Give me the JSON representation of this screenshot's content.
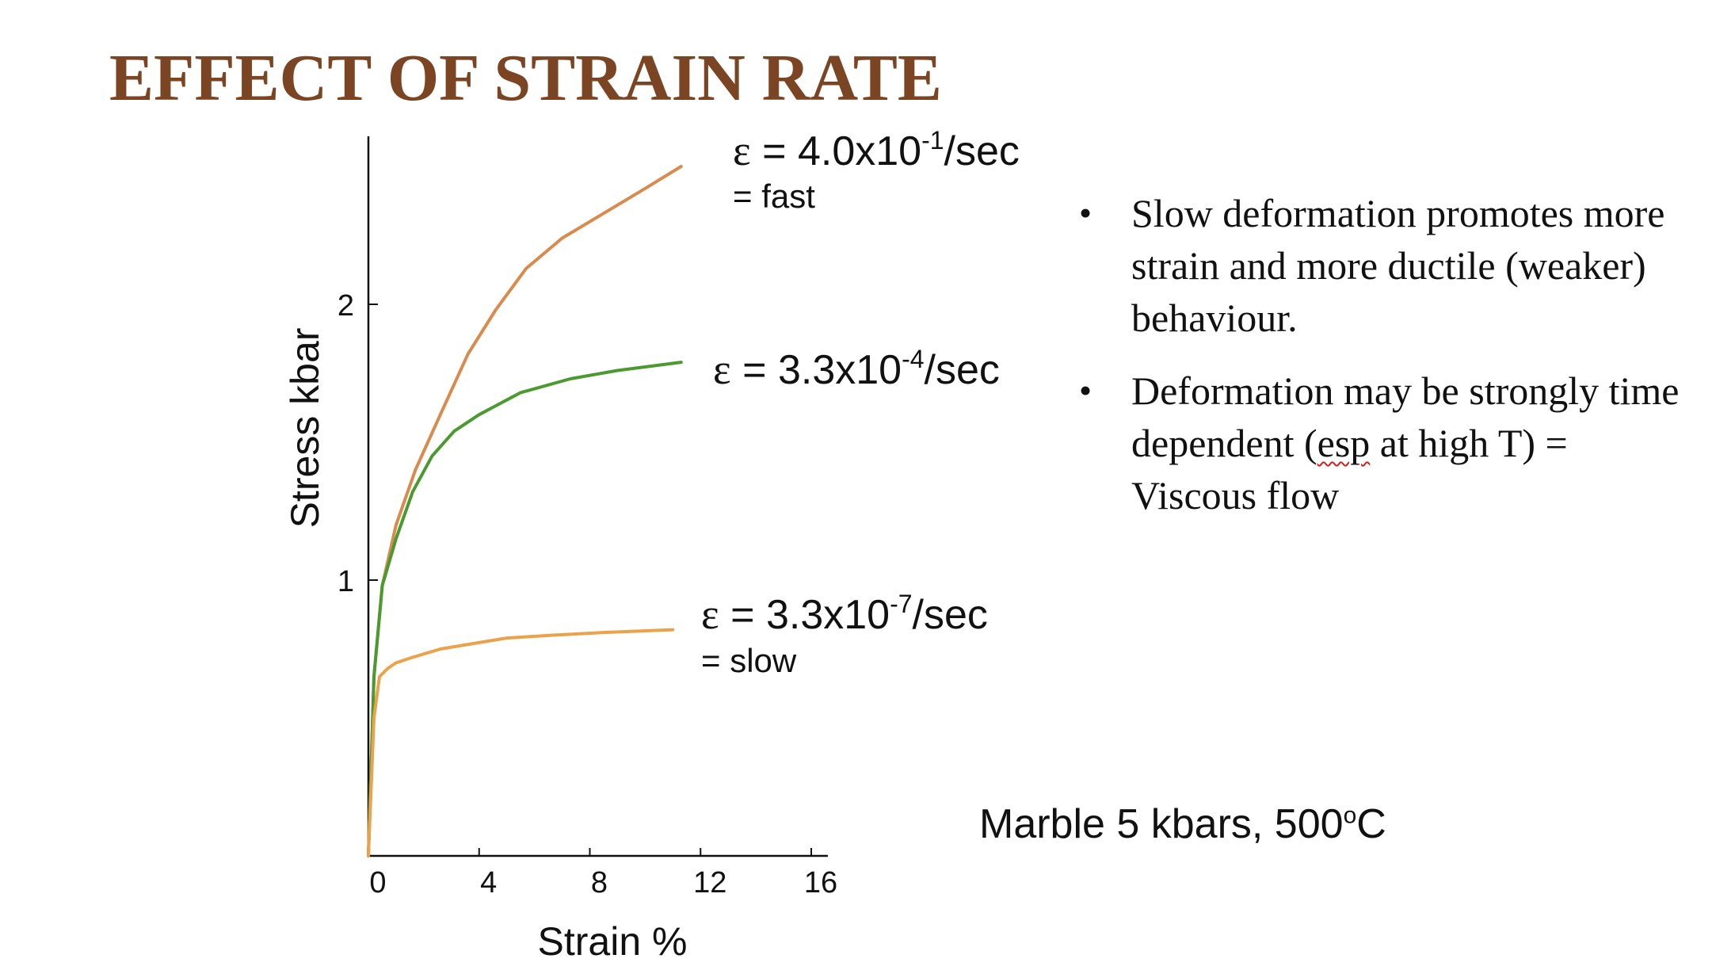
{
  "slide": {
    "title": "EFFECT OF STRAIN RATE",
    "bullets": [
      {
        "text": "Slow deformation promotes more strain and more ductile (weaker) behaviour."
      },
      {
        "pre": "Deformation may be strongly time dependent (",
        "misspelled": "esp",
        "post": " at high T) = Viscous flow"
      }
    ],
    "conditions": {
      "pre": "Marble 5 kbars, 500",
      "sup": "o",
      "post": "C"
    }
  },
  "colors": {
    "title": "#7b4423",
    "fast": "#d98b4e",
    "medium": "#4a9a2f",
    "slow": "#eba24a",
    "axis": "#111111"
  },
  "chart_data": {
    "type": "line",
    "xlabel": "Strain %",
    "ylabel": "Stress kbar",
    "xlim": [
      0,
      16
    ],
    "ylim": [
      0,
      2.55
    ],
    "xticks": [
      0,
      4,
      8,
      12,
      16
    ],
    "yticks": [
      1,
      2
    ],
    "grid": false,
    "series": [
      {
        "key": "fast",
        "label": {
          "symbol": "ε",
          "rate": " = 4.0x10",
          "exp": "-1",
          "unit": "/sec",
          "note": "= fast"
        },
        "x": [
          0,
          0.2,
          0.5,
          1.0,
          1.7,
          2.6,
          3.6,
          4.6,
          5.7,
          7.0,
          8.5,
          10.0,
          11.3
        ],
        "y": [
          0,
          0.65,
          0.98,
          1.2,
          1.4,
          1.6,
          1.82,
          1.98,
          2.13,
          2.24,
          2.33,
          2.42,
          2.5
        ]
      },
      {
        "key": "medium",
        "label": {
          "symbol": "ε",
          "rate": " = 3.3x10",
          "exp": "-4",
          "unit": "/sec",
          "note": ""
        },
        "x": [
          0,
          0.2,
          0.5,
          1.0,
          1.6,
          2.3,
          3.1,
          4.0,
          5.5,
          7.3,
          9.0,
          11.3
        ],
        "y": [
          0,
          0.65,
          0.98,
          1.15,
          1.32,
          1.45,
          1.54,
          1.6,
          1.68,
          1.73,
          1.76,
          1.79
        ]
      },
      {
        "key": "slow",
        "label": {
          "symbol": "ε",
          "rate": " = 3.3x10",
          "exp": "-7",
          "unit": "/sec",
          "note": "= slow"
        },
        "x": [
          0,
          0.2,
          0.4,
          0.7,
          1.0,
          1.6,
          2.6,
          3.8,
          5.0,
          6.6,
          8.5,
          11.0
        ],
        "y": [
          0,
          0.5,
          0.65,
          0.68,
          0.7,
          0.72,
          0.75,
          0.77,
          0.79,
          0.8,
          0.81,
          0.82
        ]
      }
    ]
  }
}
